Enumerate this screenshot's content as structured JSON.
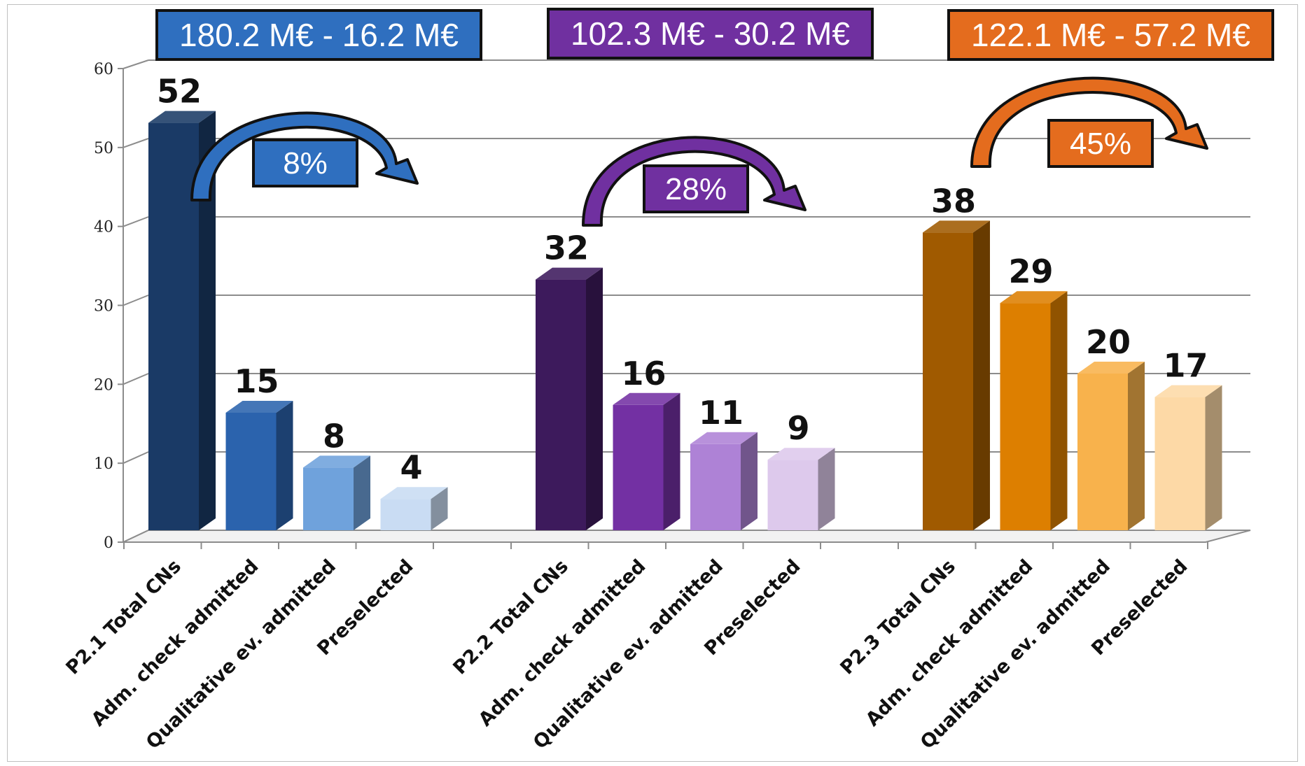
{
  "chart_data": {
    "type": "bar",
    "ylim": [
      0,
      60
    ],
    "yticks": [
      0,
      10,
      20,
      30,
      40,
      50,
      60
    ],
    "grid": true,
    "groups": [
      {
        "budget_label": "180.2 M€ - 16.2 M€",
        "percent_label": "8%",
        "color": "#2f6fbf",
        "categories": [
          "P2.1 Total CNs",
          "Adm. check admitted",
          "Qualitative ev. admitted",
          "Preselected"
        ],
        "values": [
          52,
          15,
          8,
          4
        ],
        "bar_colors": [
          "#1a3a66",
          "#2b63ad",
          "#6fa2dc",
          "#c9dcf3"
        ]
      },
      {
        "budget_label": "102.3 M€ - 30.2 M€",
        "percent_label": "28%",
        "color": "#7030a0",
        "categories": [
          "P2.2 Total CNs",
          "Adm. check admitted",
          "Qualitative ev. admitted",
          "Preselected"
        ],
        "values": [
          32,
          16,
          11,
          9
        ],
        "bar_colors": [
          "#3d1a5c",
          "#7330a3",
          "#ae82d6",
          "#ddc9ec"
        ]
      },
      {
        "budget_label": "122.1 M€ - 57.2 M€",
        "percent_label": "45%",
        "color": "#e46c1e",
        "categories": [
          "P2.3 Total CNs",
          "Adm. check admitted",
          "Qualitative ev. admitted",
          "Preselected"
        ],
        "values": [
          38,
          29,
          20,
          17
        ],
        "bar_colors": [
          "#a05a00",
          "#dd7f00",
          "#f8b24c",
          "#fdd9a6"
        ]
      }
    ]
  }
}
